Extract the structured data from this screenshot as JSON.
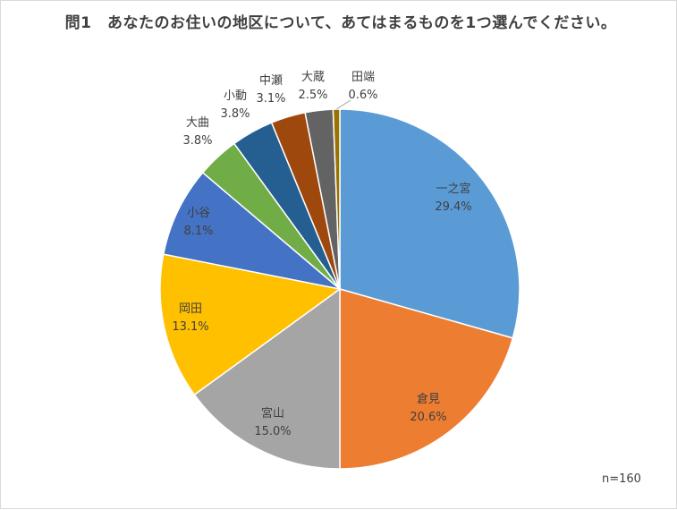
{
  "chart_data": {
    "type": "pie",
    "title": "問1　あなたのお住いの地区について、あてはまるものを1つ選んでください。",
    "slices": [
      {
        "label": "一之宮",
        "value": 29.4,
        "value_text": "29.4%",
        "color": "#5b9bd5"
      },
      {
        "label": "倉見",
        "value": 20.6,
        "value_text": "20.6%",
        "color": "#ed7d31"
      },
      {
        "label": "宮山",
        "value": 15.0,
        "value_text": "15.0%",
        "color": "#a5a5a5"
      },
      {
        "label": "岡田",
        "value": 13.1,
        "value_text": "13.1%",
        "color": "#ffc000"
      },
      {
        "label": "小谷",
        "value": 8.1,
        "value_text": "8.1%",
        "color": "#4472c4"
      },
      {
        "label": "大曲",
        "value": 3.8,
        "value_text": "3.8%",
        "color": "#70ad47"
      },
      {
        "label": "小動",
        "value": 3.8,
        "value_text": "3.8%",
        "color": "#255e91"
      },
      {
        "label": "中瀬",
        "value": 3.1,
        "value_text": "3.1%",
        "color": "#9e480e"
      },
      {
        "label": "大蔵",
        "value": 2.5,
        "value_text": "2.5%",
        "color": "#636363"
      },
      {
        "label": "田端",
        "value": 0.6,
        "value_text": "0.6%",
        "color": "#997300"
      }
    ],
    "start_angle": "12 o'clock",
    "direction": "clockwise",
    "legend": "none",
    "data_labels": "category name and percentage"
  },
  "note": "n=160"
}
